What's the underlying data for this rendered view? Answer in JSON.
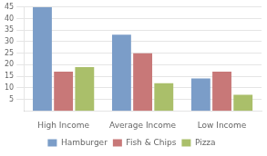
{
  "chart_data": {
    "type": "bar",
    "categories": [
      "High Income",
      "Average Income",
      "Low Income"
    ],
    "series": [
      {
        "name": "Hamburger",
        "color": "#7B9DC8",
        "values": [
          45,
          33,
          14
        ]
      },
      {
        "name": "Fish & Chips",
        "color": "#C87878",
        "values": [
          17,
          25,
          17
        ]
      },
      {
        "name": "Pizza",
        "color": "#AABF6A",
        "values": [
          19,
          12,
          7
        ]
      }
    ],
    "ylim": [
      0,
      45
    ],
    "yticks": [
      5,
      10,
      15,
      20,
      25,
      30,
      35,
      40,
      45
    ],
    "grid": true,
    "legend": "bottom"
  }
}
